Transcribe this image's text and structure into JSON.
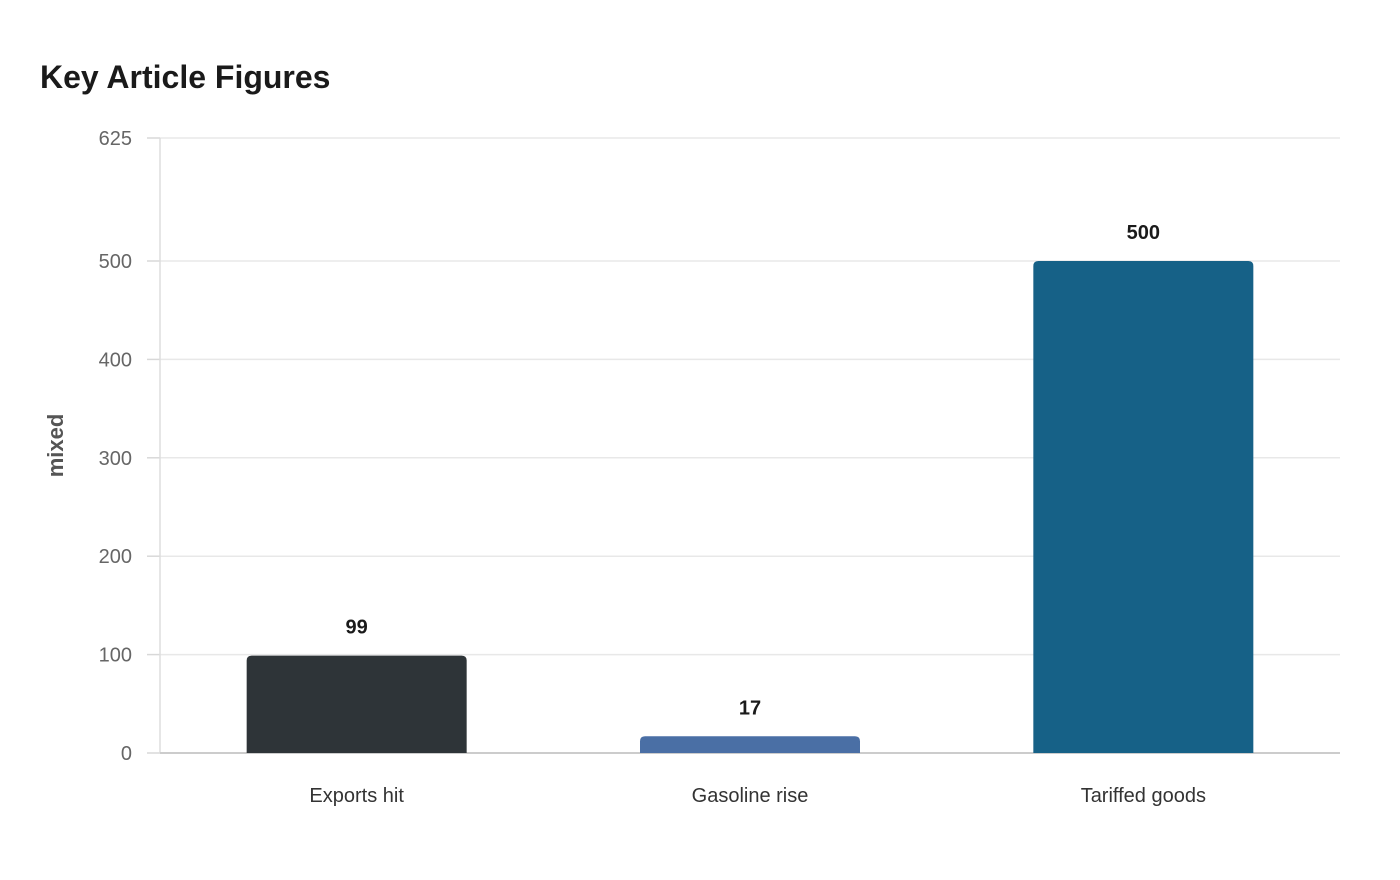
{
  "chart_data": {
    "type": "bar",
    "title": "Key Article Figures",
    "xlabel": "",
    "ylabel": "mixed",
    "categories": [
      "Exports hit",
      "Gasoline rise",
      "Tariffed goods"
    ],
    "values": [
      99,
      17,
      500
    ],
    "value_labels": [
      "99",
      "17",
      "500"
    ],
    "colors": [
      "#2e3438",
      "#4a6fa5",
      "#166187"
    ],
    "ylim": [
      0,
      625
    ],
    "yticks": [
      0,
      100,
      200,
      300,
      400,
      500,
      625
    ],
    "grid": true,
    "legend": "none"
  }
}
